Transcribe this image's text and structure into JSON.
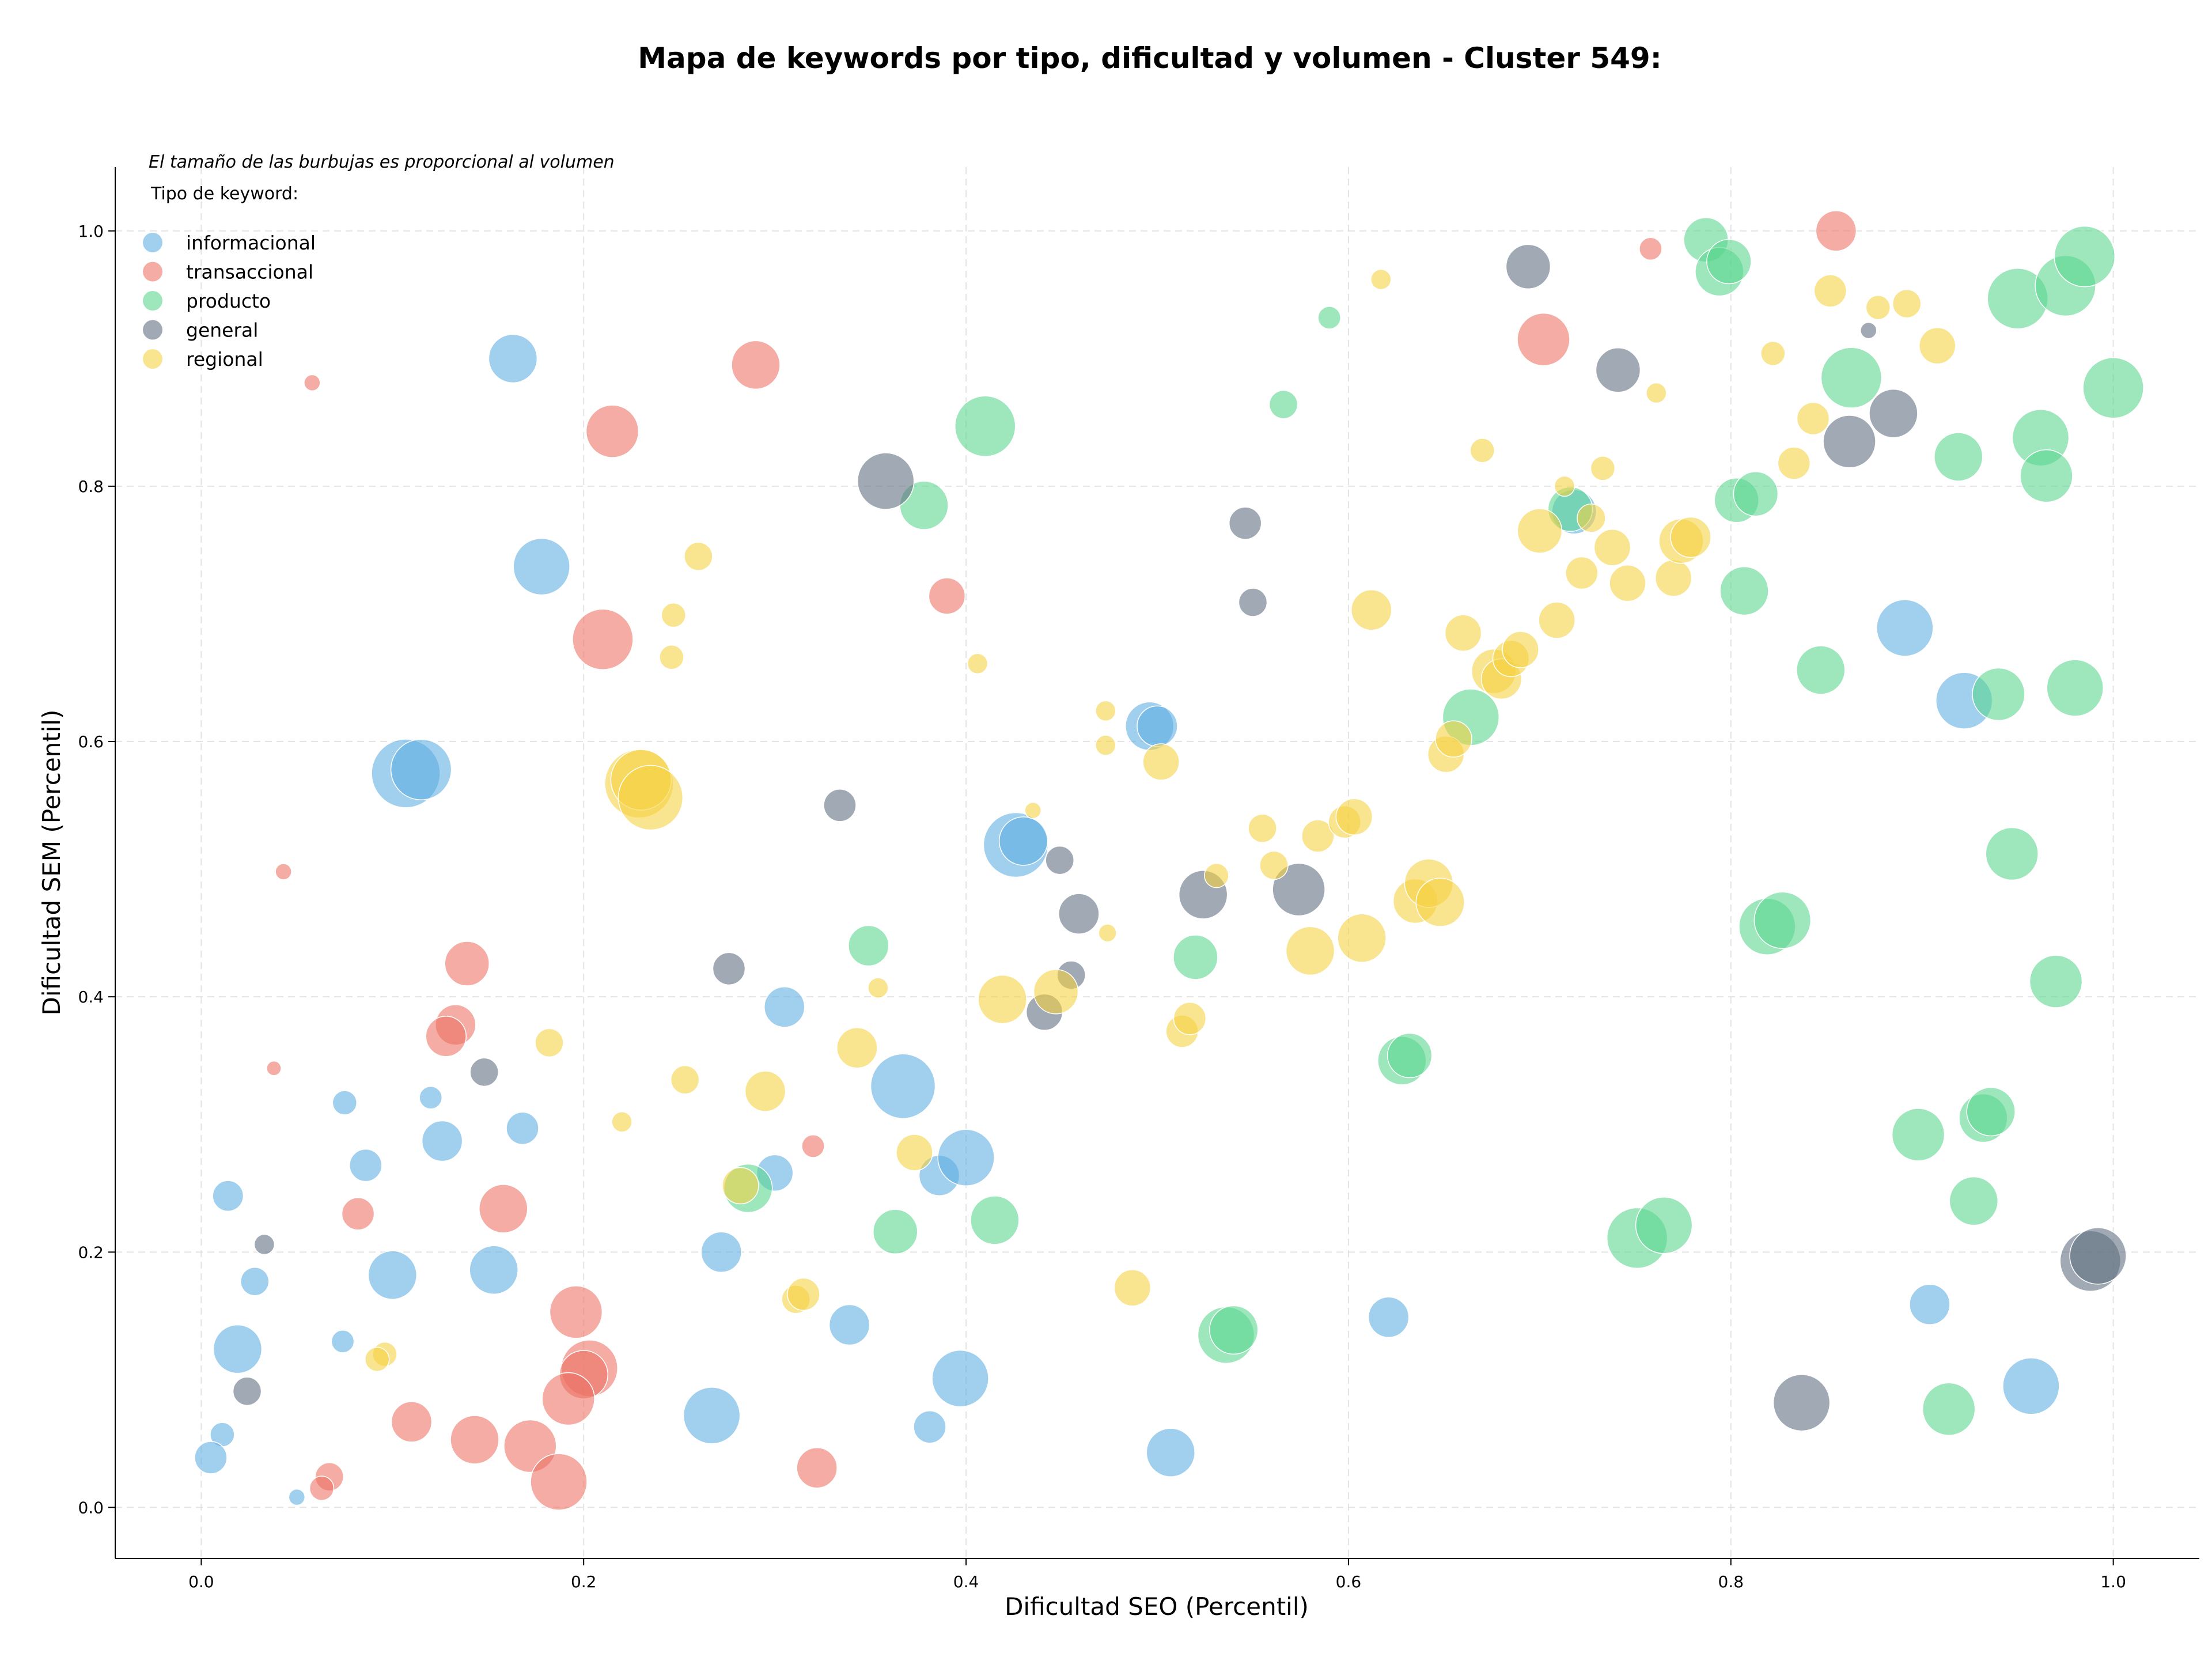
{
  "chart_data": {
    "type": "scatter",
    "title": "Mapa de keywords por tipo, dificultad y volumen - Cluster 549:",
    "xlabel": "Dificultad SEO (Percentil)",
    "ylabel": "Dificultad SEM (Percentil)",
    "xlim": [
      -0.045,
      1.045
    ],
    "ylim": [
      -0.04,
      1.05
    ],
    "x_ticks": [
      "0.0",
      "0.2",
      "0.4",
      "0.6",
      "0.8",
      "1.0"
    ],
    "y_ticks": [
      "0.0",
      "0.2",
      "0.4",
      "0.6",
      "0.8",
      "1.0"
    ],
    "grid": true,
    "legend_position": "top-left",
    "legend_title": "Tipo de keyword:",
    "note": "El tamaño de las burbujas es proporcional al volumen",
    "size_encoding": "volume (relative)",
    "series": [
      {
        "name": "informacional",
        "color": "#5DADE2",
        "points": [
          [
            0.163,
            0.9,
            0.6
          ],
          [
            0.178,
            0.737,
            0.7
          ],
          [
            0.107,
            0.575,
            0.85
          ],
          [
            0.115,
            0.578,
            0.75
          ],
          [
            0.075,
            0.317,
            0.3
          ],
          [
            0.12,
            0.321,
            0.28
          ],
          [
            0.126,
            0.287,
            0.5
          ],
          [
            0.168,
            0.297,
            0.4
          ],
          [
            0.086,
            0.268,
            0.4
          ],
          [
            0.014,
            0.244,
            0.38
          ],
          [
            0.1,
            0.182,
            0.6
          ],
          [
            0.153,
            0.186,
            0.6
          ],
          [
            0.028,
            0.177,
            0.35
          ],
          [
            0.019,
            0.124,
            0.6
          ],
          [
            0.074,
            0.13,
            0.28
          ],
          [
            0.011,
            0.057,
            0.3
          ],
          [
            0.005,
            0.039,
            0.4
          ],
          [
            0.05,
            0.008,
            0.2
          ],
          [
            0.305,
            0.392,
            0.5
          ],
          [
            0.3,
            0.262,
            0.45
          ],
          [
            0.272,
            0.2,
            0.5
          ],
          [
            0.267,
            0.072,
            0.7
          ],
          [
            0.339,
            0.143,
            0.5
          ],
          [
            0.367,
            0.33,
            0.8
          ],
          [
            0.386,
            0.26,
            0.5
          ],
          [
            0.4,
            0.274,
            0.7
          ],
          [
            0.397,
            0.101,
            0.7
          ],
          [
            0.381,
            0.063,
            0.4
          ],
          [
            0.426,
            0.519,
            0.8
          ],
          [
            0.43,
            0.522,
            0.6
          ],
          [
            0.496,
            0.612,
            0.6
          ],
          [
            0.5,
            0.612,
            0.5
          ],
          [
            0.507,
            0.043,
            0.6
          ],
          [
            0.621,
            0.149,
            0.5
          ],
          [
            0.891,
            0.689,
            0.7
          ],
          [
            0.922,
            0.632,
            0.7
          ],
          [
            0.904,
            0.159,
            0.5
          ],
          [
            0.957,
            0.095,
            0.7
          ],
          [
            0.718,
            0.78,
            0.55
          ]
        ]
      },
      {
        "name": "transaccional",
        "color": "#EC7063",
        "points": [
          [
            0.058,
            0.881,
            0.2
          ],
          [
            0.29,
            0.895,
            0.6
          ],
          [
            0.215,
            0.843,
            0.65
          ],
          [
            0.21,
            0.68,
            0.75
          ],
          [
            0.043,
            0.498,
            0.2
          ],
          [
            0.139,
            0.426,
            0.55
          ],
          [
            0.133,
            0.378,
            0.5
          ],
          [
            0.128,
            0.369,
            0.5
          ],
          [
            0.038,
            0.344,
            0.18
          ],
          [
            0.082,
            0.23,
            0.4
          ],
          [
            0.158,
            0.234,
            0.6
          ],
          [
            0.196,
            0.153,
            0.65
          ],
          [
            0.203,
            0.109,
            0.7
          ],
          [
            0.2,
            0.104,
            0.6
          ],
          [
            0.192,
            0.085,
            0.65
          ],
          [
            0.11,
            0.067,
            0.5
          ],
          [
            0.143,
            0.053,
            0.6
          ],
          [
            0.172,
            0.048,
            0.65
          ],
          [
            0.187,
            0.02,
            0.7
          ],
          [
            0.067,
            0.024,
            0.35
          ],
          [
            0.063,
            0.015,
            0.3
          ],
          [
            0.322,
            0.031,
            0.5
          ],
          [
            0.32,
            0.283,
            0.28
          ],
          [
            0.39,
            0.714,
            0.45
          ],
          [
            0.702,
            0.915,
            0.65
          ],
          [
            0.758,
            0.986,
            0.28
          ],
          [
            0.855,
            1.0,
            0.5
          ]
        ]
      },
      {
        "name": "producto",
        "color": "#58D68D",
        "points": [
          [
            0.41,
            0.847,
            0.75
          ],
          [
            0.378,
            0.785,
            0.6
          ],
          [
            0.349,
            0.44,
            0.5
          ],
          [
            0.363,
            0.216,
            0.55
          ],
          [
            0.286,
            0.25,
            0.6
          ],
          [
            0.415,
            0.225,
            0.6
          ],
          [
            0.52,
            0.431,
            0.55
          ],
          [
            0.536,
            0.135,
            0.7
          ],
          [
            0.54,
            0.139,
            0.6
          ],
          [
            0.59,
            0.932,
            0.28
          ],
          [
            0.566,
            0.864,
            0.35
          ],
          [
            0.664,
            0.619,
            0.7
          ],
          [
            0.628,
            0.35,
            0.6
          ],
          [
            0.632,
            0.354,
            0.55
          ],
          [
            0.716,
            0.782,
            0.55
          ],
          [
            0.751,
            0.211,
            0.75
          ],
          [
            0.765,
            0.221,
            0.7
          ],
          [
            0.787,
            0.993,
            0.55
          ],
          [
            0.794,
            0.968,
            0.6
          ],
          [
            0.799,
            0.976,
            0.55
          ],
          [
            0.803,
            0.789,
            0.55
          ],
          [
            0.813,
            0.794,
            0.55
          ],
          [
            0.807,
            0.718,
            0.6
          ],
          [
            0.819,
            0.455,
            0.7
          ],
          [
            0.827,
            0.46,
            0.7
          ],
          [
            0.847,
            0.656,
            0.6
          ],
          [
            0.863,
            0.885,
            0.75
          ],
          [
            0.898,
            0.292,
            0.65
          ],
          [
            0.914,
            0.077,
            0.65
          ],
          [
            0.919,
            0.823,
            0.6
          ],
          [
            0.927,
            0.24,
            0.6
          ],
          [
            0.932,
            0.305,
            0.6
          ],
          [
            0.936,
            0.31,
            0.6
          ],
          [
            0.94,
            0.637,
            0.65
          ],
          [
            0.947,
            0.512,
            0.65
          ],
          [
            0.95,
            0.947,
            0.75
          ],
          [
            0.962,
            0.838,
            0.7
          ],
          [
            0.965,
            0.808,
            0.65
          ],
          [
            0.97,
            0.412,
            0.65
          ],
          [
            0.975,
            0.957,
            0.75
          ],
          [
            0.98,
            0.642,
            0.7
          ],
          [
            0.985,
            0.98,
            0.75
          ],
          [
            1.0,
            0.877,
            0.75
          ]
        ]
      },
      {
        "name": "general",
        "color": "#5D6D7E",
        "points": [
          [
            0.358,
            0.804,
            0.7
          ],
          [
            0.334,
            0.55,
            0.4
          ],
          [
            0.276,
            0.422,
            0.4
          ],
          [
            0.148,
            0.341,
            0.35
          ],
          [
            0.033,
            0.206,
            0.25
          ],
          [
            0.024,
            0.091,
            0.35
          ],
          [
            0.449,
            0.507,
            0.35
          ],
          [
            0.459,
            0.465,
            0.5
          ],
          [
            0.455,
            0.417,
            0.35
          ],
          [
            0.441,
            0.388,
            0.45
          ],
          [
            0.546,
            0.771,
            0.4
          ],
          [
            0.55,
            0.709,
            0.35
          ],
          [
            0.524,
            0.48,
            0.6
          ],
          [
            0.574,
            0.484,
            0.65
          ],
          [
            0.694,
            0.972,
            0.55
          ],
          [
            0.741,
            0.891,
            0.55
          ],
          [
            0.862,
            0.835,
            0.65
          ],
          [
            0.885,
            0.857,
            0.6
          ],
          [
            0.872,
            0.922,
            0.2
          ],
          [
            0.837,
            0.082,
            0.7
          ],
          [
            0.988,
            0.193,
            0.75
          ],
          [
            0.992,
            0.197,
            0.7
          ]
        ]
      },
      {
        "name": "regional",
        "color": "#F4D03F",
        "points": [
          [
            0.26,
            0.745,
            0.35
          ],
          [
            0.247,
            0.699,
            0.3
          ],
          [
            0.246,
            0.666,
            0.3
          ],
          [
            0.229,
            0.567,
            0.85
          ],
          [
            0.23,
            0.57,
            0.75
          ],
          [
            0.235,
            0.556,
            0.8
          ],
          [
            0.182,
            0.364,
            0.35
          ],
          [
            0.22,
            0.302,
            0.25
          ],
          [
            0.253,
            0.335,
            0.35
          ],
          [
            0.096,
            0.12,
            0.3
          ],
          [
            0.092,
            0.116,
            0.3
          ],
          [
            0.295,
            0.326,
            0.5
          ],
          [
            0.282,
            0.252,
            0.45
          ],
          [
            0.311,
            0.163,
            0.35
          ],
          [
            0.315,
            0.167,
            0.4
          ],
          [
            0.343,
            0.36,
            0.5
          ],
          [
            0.354,
            0.407,
            0.25
          ],
          [
            0.373,
            0.278,
            0.45
          ],
          [
            0.406,
            0.661,
            0.25
          ],
          [
            0.419,
            0.398,
            0.6
          ],
          [
            0.435,
            0.546,
            0.2
          ],
          [
            0.447,
            0.404,
            0.55
          ],
          [
            0.473,
            0.624,
            0.25
          ],
          [
            0.473,
            0.597,
            0.25
          ],
          [
            0.474,
            0.45,
            0.22
          ],
          [
            0.487,
            0.172,
            0.45
          ],
          [
            0.502,
            0.584,
            0.45
          ],
          [
            0.513,
            0.373,
            0.4
          ],
          [
            0.517,
            0.383,
            0.4
          ],
          [
            0.531,
            0.495,
            0.3
          ],
          [
            0.555,
            0.532,
            0.35
          ],
          [
            0.561,
            0.503,
            0.35
          ],
          [
            0.58,
            0.436,
            0.6
          ],
          [
            0.584,
            0.526,
            0.4
          ],
          [
            0.598,
            0.537,
            0.4
          ],
          [
            0.603,
            0.541,
            0.45
          ],
          [
            0.607,
            0.446,
            0.6
          ],
          [
            0.612,
            0.703,
            0.5
          ],
          [
            0.617,
            0.962,
            0.25
          ],
          [
            0.635,
            0.475,
            0.55
          ],
          [
            0.642,
            0.489,
            0.6
          ],
          [
            0.648,
            0.474,
            0.6
          ],
          [
            0.651,
            0.59,
            0.45
          ],
          [
            0.655,
            0.602,
            0.45
          ],
          [
            0.66,
            0.685,
            0.45
          ],
          [
            0.67,
            0.828,
            0.3
          ],
          [
            0.676,
            0.655,
            0.55
          ],
          [
            0.68,
            0.649,
            0.5
          ],
          [
            0.685,
            0.665,
            0.45
          ],
          [
            0.69,
            0.672,
            0.45
          ],
          [
            0.7,
            0.765,
            0.55
          ],
          [
            0.709,
            0.695,
            0.45
          ],
          [
            0.713,
            0.8,
            0.25
          ],
          [
            0.722,
            0.732,
            0.4
          ],
          [
            0.727,
            0.775,
            0.35
          ],
          [
            0.733,
            0.814,
            0.3
          ],
          [
            0.738,
            0.752,
            0.45
          ],
          [
            0.746,
            0.724,
            0.45
          ],
          [
            0.761,
            0.873,
            0.25
          ],
          [
            0.77,
            0.728,
            0.45
          ],
          [
            0.774,
            0.757,
            0.55
          ],
          [
            0.779,
            0.76,
            0.5
          ],
          [
            0.822,
            0.904,
            0.3
          ],
          [
            0.833,
            0.818,
            0.4
          ],
          [
            0.843,
            0.853,
            0.4
          ],
          [
            0.852,
            0.953,
            0.4
          ],
          [
            0.877,
            0.94,
            0.3
          ],
          [
            0.892,
            0.943,
            0.35
          ],
          [
            0.908,
            0.91,
            0.45
          ]
        ]
      }
    ]
  }
}
